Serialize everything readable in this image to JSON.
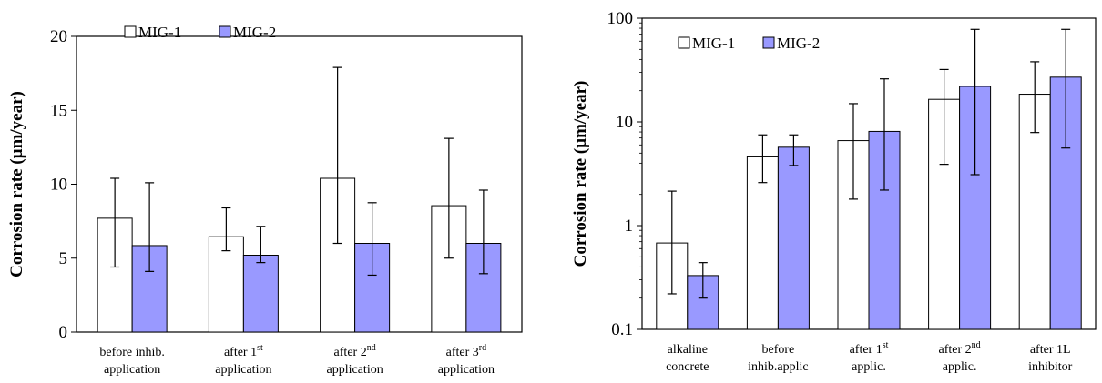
{
  "chart_data": [
    {
      "type": "bar",
      "ylabel": "Corrosion rate (µm/year)",
      "ylim": [
        0,
        20
      ],
      "yticks": [
        "0",
        "5",
        "10",
        "15",
        "20"
      ],
      "yscale": "linear",
      "legend_position": "top-left",
      "categories": [
        {
          "parts": [
            {
              "t": "before inhib."
            }
          ],
          "line2": "application"
        },
        {
          "parts": [
            {
              "t": "after 1"
            },
            {
              "t": "st",
              "sup": true
            }
          ],
          "line2": "application"
        },
        {
          "parts": [
            {
              "t": "after 2"
            },
            {
              "t": "nd",
              "sup": true
            }
          ],
          "line2": "application"
        },
        {
          "parts": [
            {
              "t": "after 3"
            },
            {
              "t": "rd",
              "sup": true
            }
          ],
          "line2": "application"
        }
      ],
      "series": [
        {
          "name": "MIG-1",
          "color": "#ffffff",
          "values": [
            7.7,
            6.45,
            10.4,
            8.55
          ],
          "err_low": [
            4.4,
            5.5,
            6.0,
            5.0
          ],
          "err_high": [
            10.4,
            8.4,
            17.9,
            13.1
          ]
        },
        {
          "name": "MIG-2",
          "color": "#9999ff",
          "values": [
            5.85,
            5.2,
            6.0,
            6.0
          ],
          "err_low": [
            4.1,
            4.7,
            3.85,
            3.95
          ],
          "err_high": [
            10.1,
            7.15,
            8.75,
            9.6
          ]
        }
      ]
    },
    {
      "type": "bar",
      "ylabel": "Corrosion rate (µm/year)",
      "ylim": [
        0.1,
        100
      ],
      "yticks": [
        "0.1",
        "1",
        "10",
        "100"
      ],
      "yscale": "log",
      "legend_position": "top-left",
      "categories": [
        {
          "parts": [
            {
              "t": "alkaline"
            }
          ],
          "line2": "concrete"
        },
        {
          "parts": [
            {
              "t": "before"
            }
          ],
          "line2": "inhib.applic"
        },
        {
          "parts": [
            {
              "t": "after 1"
            },
            {
              "t": "st",
              "sup": true
            }
          ],
          "line2": "applic."
        },
        {
          "parts": [
            {
              "t": "after 2"
            },
            {
              "t": "nd",
              "sup": true
            }
          ],
          "line2": "applic."
        },
        {
          "parts": [
            {
              "t": "after 1L"
            }
          ],
          "line2": "inhibitor"
        }
      ],
      "series": [
        {
          "name": "MIG-1",
          "color": "#ffffff",
          "values": [
            0.68,
            4.6,
            6.6,
            16.5,
            18.5
          ],
          "err_low": [
            0.22,
            2.6,
            1.8,
            3.9,
            7.9
          ],
          "err_high": [
            2.15,
            7.5,
            15.0,
            32.0,
            38.0
          ]
        },
        {
          "name": "MIG-2",
          "color": "#9999ff",
          "values": [
            0.33,
            5.7,
            8.1,
            22.0,
            27.0
          ],
          "err_low": [
            0.2,
            3.8,
            2.2,
            3.1,
            5.6
          ],
          "err_high": [
            0.44,
            7.5,
            26.0,
            78.0,
            78.0
          ]
        }
      ]
    }
  ]
}
